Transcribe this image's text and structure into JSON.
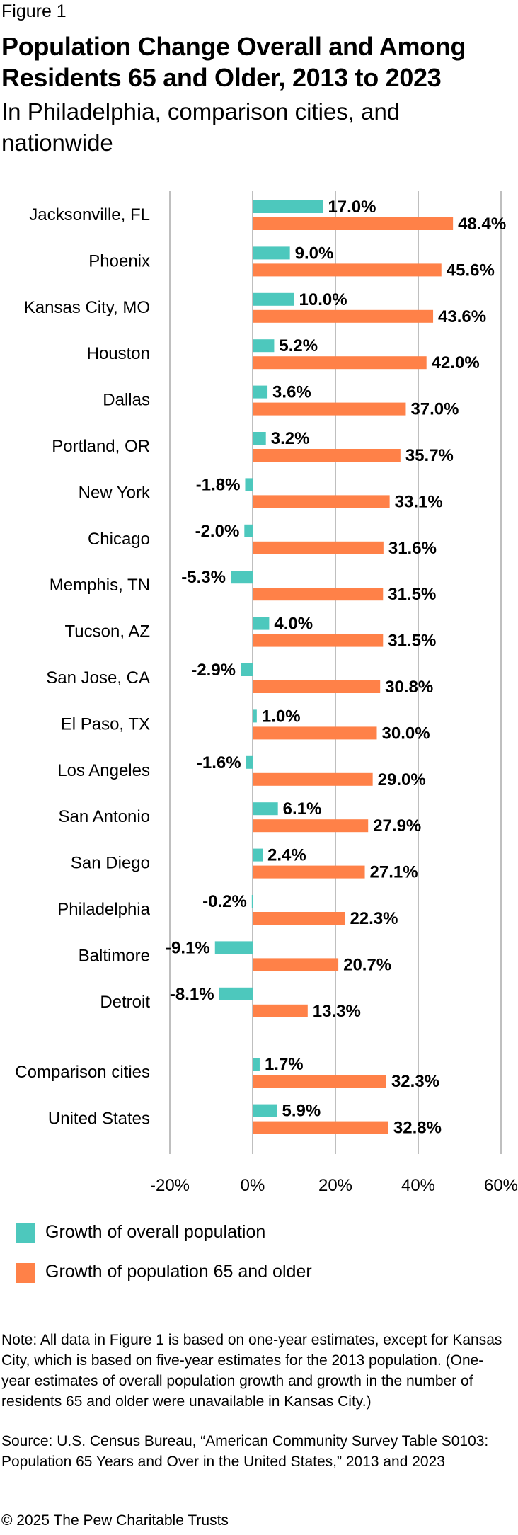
{
  "figure_label": "Figure 1",
  "title": "Population Change Overall and Among Residents 65 and Older, 2013 to 2023",
  "subtitle": "In Philadelphia, comparison cities, and nationwide",
  "colors": {
    "overall": "#4dc8bd",
    "senior": "#ff8148",
    "grid": "#aaaaaa"
  },
  "chart_data": {
    "type": "bar",
    "orientation": "horizontal",
    "categories": [
      "Jacksonville, FL",
      "Phoenix",
      "Kansas City, MO",
      "Houston",
      "Dallas",
      "Portland, OR",
      "New York",
      "Chicago",
      "Memphis, TN",
      "Tucson, AZ",
      "San Jose, CA",
      "El Paso, TX",
      "Los Angeles",
      "San Antonio",
      "San Diego",
      "Philadelphia",
      "Baltimore",
      "Detroit",
      "Comparison cities",
      "United States"
    ],
    "series": [
      {
        "name": "Growth of overall population",
        "values": [
          17.0,
          9.0,
          10.0,
          5.2,
          3.6,
          3.2,
          -1.8,
          -2.0,
          -5.3,
          4.0,
          -2.9,
          1.0,
          -1.6,
          6.1,
          2.4,
          -0.2,
          -9.1,
          -8.1,
          1.7,
          5.9
        ]
      },
      {
        "name": "Growth of population 65 and older",
        "values": [
          48.4,
          45.6,
          43.6,
          42.0,
          37.0,
          35.7,
          33.1,
          31.6,
          31.5,
          31.5,
          30.8,
          30.0,
          29.0,
          27.9,
          27.1,
          22.3,
          20.7,
          13.3,
          32.3,
          32.8
        ]
      }
    ],
    "xlim": [
      -20,
      60
    ],
    "x_ticks": [
      "-20%",
      "0%",
      "20%",
      "40%",
      "60%"
    ],
    "x_tick_values": [
      -20,
      0,
      20,
      40,
      60
    ],
    "value_format": "percent_1dp",
    "legend_position": "bottom-left",
    "grid": true
  },
  "note": "Note: All data in Figure 1 is based on one-year estimates, except for Kansas City, which is based on five-year estimates for the 2013 population. (One-year estimates of overall population growth and growth in the number of residents 65 and older were unavailable in Kansas City.)",
  "source": "Source: U.S. Census Bureau, “American Community Survey Table S0103: Population 65 Years and Over in the United States,” 2013 and 2023",
  "copyright": "© 2025 The Pew Charitable Trusts"
}
